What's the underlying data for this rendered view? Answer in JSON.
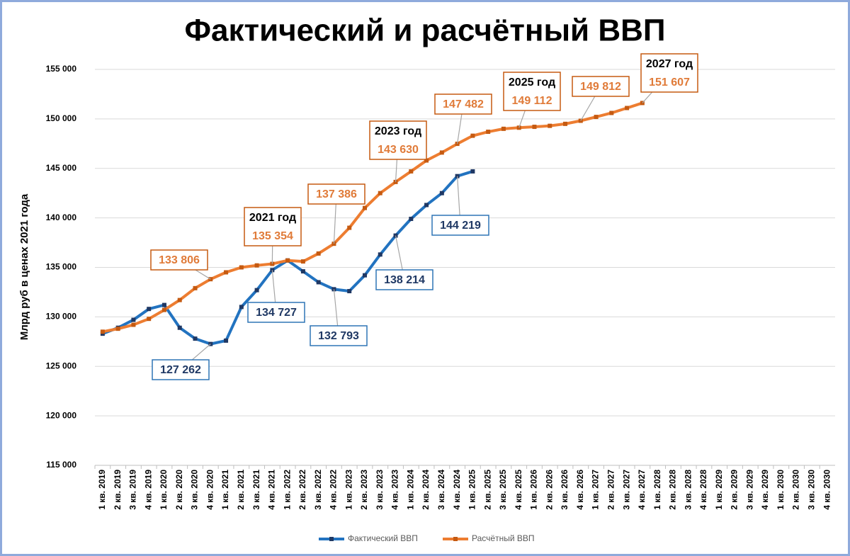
{
  "chart_data": {
    "type": "line",
    "title": "Фактический и расчётный ВВП",
    "y_label": "Млрд руб в ценах 2021 года",
    "categories": [
      "1 кв. 2019",
      "2 кв. 2019",
      "3 кв. 2019",
      "4 кв. 2019",
      "1 кв. 2020",
      "2 кв. 2020",
      "3 кв. 2020",
      "4 кв. 2020",
      "1 кв. 2021",
      "2 кв. 2021",
      "3 кв. 2021",
      "4 кв. 2021",
      "1 кв. 2022",
      "2 кв. 2022",
      "3 кв. 2022",
      "4 кв. 2022",
      "1 кв. 2023",
      "2 кв. 2023",
      "3 кв. 2023",
      "4 кв. 2023",
      "1 кв. 2024",
      "2 кв. 2024",
      "3 кв. 2024",
      "4 кв. 2024",
      "1 кв. 2025",
      "2 кв. 2025",
      "3 кв. 2025",
      "4 кв. 2025",
      "1 кв. 2026",
      "2 кв. 2026",
      "3 кв. 2026",
      "4 кв. 2026",
      "1 кв. 2027",
      "2 кв. 2027",
      "3 кв. 2027",
      "4 кв. 2027",
      "1 кв. 2028",
      "2 кв. 2028",
      "3 кв. 2028",
      "4 кв. 2028",
      "1 кв. 2029",
      "2 кв. 2029",
      "3 кв. 2029",
      "4 кв. 2029",
      "1 кв. 2030",
      "2 кв. 2030",
      "3 кв. 2030",
      "4 кв. 2030"
    ],
    "series": [
      {
        "name": "Фактический ВВП",
        "color": "#2273c0",
        "marker_color": "#1f3864",
        "values": [
          128300,
          128900,
          129700,
          130800,
          131200,
          128900,
          127800,
          127262,
          127600,
          131000,
          132700,
          134727,
          135700,
          134600,
          133500,
          132793,
          132600,
          134200,
          136300,
          138214,
          139900,
          141300,
          142500,
          144219,
          144700,
          null,
          null,
          null,
          null,
          null,
          null,
          null,
          null,
          null,
          null,
          null,
          null,
          null,
          null,
          null,
          null,
          null,
          null,
          null,
          null,
          null,
          null,
          null
        ],
        "value_labels": [
          null,
          null,
          null,
          null,
          null,
          null,
          null,
          "127 262",
          null,
          null,
          null,
          "134 727",
          null,
          null,
          null,
          "132 793",
          null,
          null,
          null,
          "138 214",
          null,
          null,
          null,
          "144 219",
          null,
          null,
          null,
          null,
          null,
          null,
          null,
          null,
          null,
          null,
          null,
          null,
          null,
          null,
          null,
          null,
          null,
          null,
          null,
          null,
          null,
          null,
          null,
          null
        ]
      },
      {
        "name": "Расчётный ВВП",
        "color": "#ed7d31",
        "marker_color": "#c55a11",
        "values": [
          128500,
          128800,
          129200,
          129800,
          130700,
          131700,
          132900,
          133806,
          134500,
          135000,
          135200,
          135354,
          135700,
          135600,
          136400,
          137386,
          139000,
          141000,
          142500,
          143630,
          144700,
          145800,
          146600,
          147482,
          148300,
          148700,
          149000,
          149112,
          149200,
          149300,
          149500,
          149812,
          150200,
          150600,
          151100,
          151607,
          null,
          null,
          null,
          null,
          null,
          null,
          null,
          null,
          null,
          null,
          null,
          null
        ],
        "value_labels": [
          null,
          null,
          null,
          null,
          null,
          null,
          null,
          "133 806",
          null,
          null,
          null,
          "135 354",
          null,
          null,
          null,
          "137 386",
          null,
          null,
          null,
          "143 630",
          null,
          null,
          null,
          "147 482",
          null,
          null,
          null,
          "149 112",
          null,
          null,
          null,
          "149 812",
          null,
          null,
          null,
          "151 607",
          null,
          null,
          null,
          null,
          null,
          null,
          null,
          null,
          null,
          null,
          null,
          null
        ]
      }
    ],
    "annotations": [
      "2021 год",
      "2023 год",
      "2025 год",
      "2027 год"
    ],
    "ylim": [
      115000,
      155000
    ],
    "yticks": [
      {
        "value": 115000,
        "label": "115 000"
      },
      {
        "value": 120000,
        "label": "120 000"
      },
      {
        "value": 125000,
        "label": "125 000"
      },
      {
        "value": 130000,
        "label": "130 000"
      },
      {
        "value": 135000,
        "label": "135 000"
      },
      {
        "value": 140000,
        "label": "140 000"
      },
      {
        "value": 145000,
        "label": "145 000"
      },
      {
        "value": 150000,
        "label": "150 000"
      },
      {
        "value": 155000,
        "label": "155 000"
      }
    ],
    "grid": true,
    "legend": "bottom"
  }
}
